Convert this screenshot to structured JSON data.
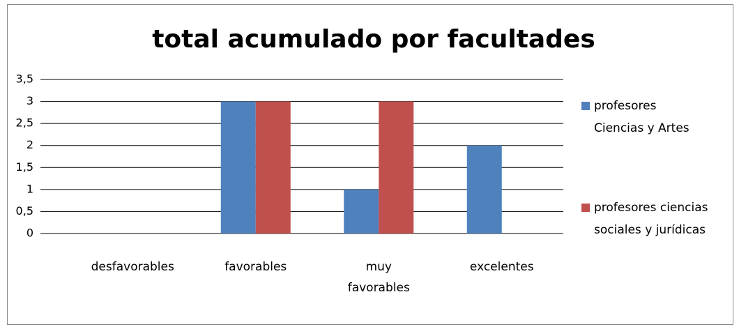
{
  "chart_data": {
    "type": "bar",
    "title": "total acumulado por facultades",
    "categories": [
      "desfavorables",
      "favorables",
      "muy favorables",
      "excelentes"
    ],
    "series": [
      {
        "name": "profesores Ciencias y Artes",
        "color": "#4f81bd",
        "values": [
          0,
          3,
          1,
          2
        ]
      },
      {
        "name": "profesores ciencias sociales y jurídicas",
        "color": "#c0504d",
        "values": [
          0,
          3,
          3,
          0
        ]
      }
    ],
    "ylim": [
      0,
      3.5
    ],
    "yticks": [
      0,
      {
        "value": 0.5,
        "label": "0,5"
      },
      1,
      {
        "value": 1.5,
        "label": "1,5"
      },
      2,
      {
        "value": 2.5,
        "label": "2,5"
      },
      3,
      {
        "value": 3.5,
        "label": "3,5"
      }
    ],
    "grid": true,
    "legend": "right"
  }
}
